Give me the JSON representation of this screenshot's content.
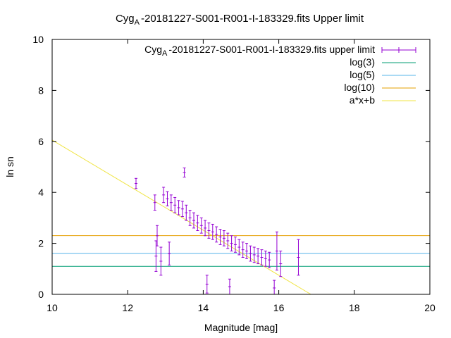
{
  "chart_data": {
    "type": "scatter",
    "title": {
      "prefix": "Cyg",
      "sub": "A",
      "suffix": "-20181227-S001-R001-I-183329.fits Upper limit"
    },
    "xlabel": "Magnitude [mag]",
    "ylabel": "ln sn",
    "xlim": [
      10,
      20
    ],
    "ylim": [
      0,
      10
    ],
    "xticks": [
      "10",
      "12",
      "14",
      "16",
      "18",
      "20"
    ],
    "yticks": [
      "0",
      "2",
      "4",
      "6",
      "8",
      "10"
    ],
    "grid": false,
    "legend_position": "top-right",
    "series": [
      {
        "key": "data",
        "name": {
          "prefix": "Cyg",
          "sub": "A",
          "suffix": "-20181227-S001-R001-I-183329.fits upper limit"
        },
        "style": "errorbars",
        "color": "#9400d3",
        "points": [
          [
            12.22,
            4.35,
            0.2
          ],
          [
            13.5,
            4.78,
            0.18
          ],
          [
            12.72,
            3.6,
            0.3
          ],
          [
            12.75,
            1.5,
            0.6
          ],
          [
            12.88,
            1.3,
            0.55
          ],
          [
            13.1,
            1.6,
            0.45
          ],
          [
            12.78,
            2.3,
            0.4
          ],
          [
            16.52,
            1.45,
            0.7
          ],
          [
            15.95,
            1.7,
            0.75
          ],
          [
            16.05,
            1.2,
            0.5
          ],
          [
            15.88,
            0.25,
            0.3
          ],
          [
            14.1,
            0.4,
            0.35
          ],
          [
            14.7,
            0.3,
            0.3
          ],
          [
            12.95,
            3.9,
            0.3
          ],
          [
            13.05,
            3.75,
            0.28
          ],
          [
            13.15,
            3.6,
            0.3
          ],
          [
            13.25,
            3.5,
            0.3
          ],
          [
            13.35,
            3.4,
            0.28
          ],
          [
            13.45,
            3.35,
            0.3
          ],
          [
            13.55,
            3.2,
            0.3
          ],
          [
            13.65,
            3.0,
            0.3
          ],
          [
            13.75,
            2.9,
            0.3
          ],
          [
            13.85,
            2.8,
            0.3
          ],
          [
            13.95,
            2.7,
            0.3
          ],
          [
            14.05,
            2.6,
            0.3
          ],
          [
            14.15,
            2.5,
            0.3
          ],
          [
            14.25,
            2.45,
            0.3
          ],
          [
            14.35,
            2.35,
            0.3
          ],
          [
            14.45,
            2.25,
            0.3
          ],
          [
            14.55,
            2.2,
            0.3
          ],
          [
            14.65,
            2.1,
            0.3
          ],
          [
            14.75,
            2.0,
            0.3
          ],
          [
            14.85,
            1.95,
            0.3
          ],
          [
            14.95,
            1.85,
            0.3
          ],
          [
            15.05,
            1.75,
            0.3
          ],
          [
            15.15,
            1.7,
            0.3
          ],
          [
            15.25,
            1.6,
            0.3
          ],
          [
            15.35,
            1.55,
            0.3
          ],
          [
            15.45,
            1.5,
            0.3
          ],
          [
            15.55,
            1.45,
            0.3
          ],
          [
            15.65,
            1.4,
            0.3
          ],
          [
            15.75,
            1.35,
            0.3
          ]
        ]
      },
      {
        "key": "log3",
        "name": "log(3)",
        "style": "hline",
        "y": 1.0986,
        "color": "#009e73"
      },
      {
        "key": "log5",
        "name": "log(5)",
        "style": "hline",
        "y": 1.6094,
        "color": "#56b4e9"
      },
      {
        "key": "log10",
        "name": "log(10)",
        "style": "hline",
        "y": 2.3026,
        "color": "#e69f00"
      },
      {
        "key": "fit",
        "name": "a*x+b",
        "style": "line",
        "color": "#f0e442",
        "x": [
          10,
          16.85
        ],
        "y": [
          6.05,
          0
        ]
      }
    ]
  }
}
